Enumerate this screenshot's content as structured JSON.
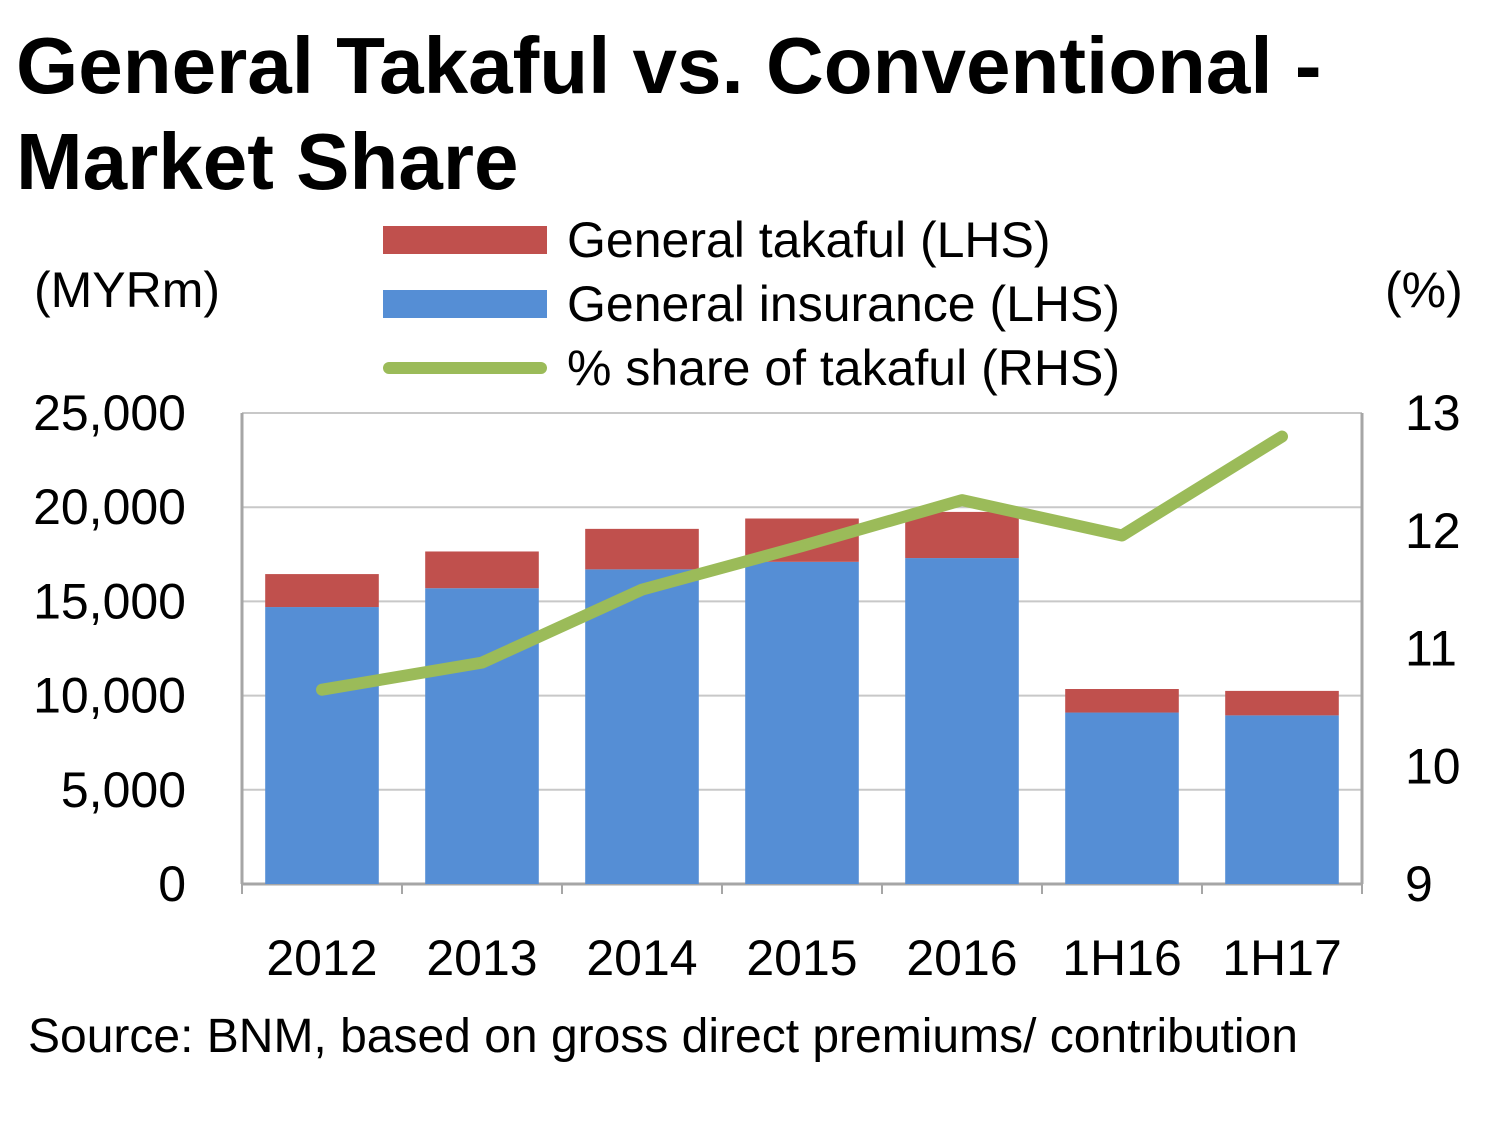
{
  "chart_data": {
    "type": "bar",
    "title": "General Takaful vs. Conventional - Market Share",
    "categories": [
      "2012",
      "2013",
      "2014",
      "2015",
      "2016",
      "1H16",
      "1H17"
    ],
    "series": [
      {
        "name": "General insurance (LHS)",
        "kind": "stacked-bar",
        "axis": "left",
        "color": "#558ed5",
        "values": [
          14700,
          15700,
          16700,
          17100,
          17300,
          9100,
          8950
        ]
      },
      {
        "name": "General takaful (LHS)",
        "kind": "stacked-bar",
        "axis": "left",
        "color": "#c0504d",
        "values": [
          1750,
          1950,
          2150,
          2300,
          2450,
          1250,
          1300
        ]
      },
      {
        "name": "% share of takaful (RHS)",
        "kind": "line",
        "axis": "right",
        "color": "#9bbb59",
        "values": [
          10.65,
          10.88,
          11.5,
          11.87,
          12.26,
          11.96,
          12.8
        ]
      }
    ],
    "legend_order": [
      "General takaful (LHS)",
      "General insurance (LHS)",
      "% share of takaful (RHS)"
    ],
    "ylabel": "(MYRm)",
    "ylabel_right": "(%)",
    "ylim": [
      0,
      25000
    ],
    "yticks": [
      0,
      5000,
      10000,
      15000,
      20000,
      25000
    ],
    "ytick_labels": [
      "0",
      "5,000",
      "10,000",
      "15,000",
      "20,000",
      "25,000"
    ],
    "ylim_right": [
      9,
      13
    ],
    "yticks_right": [
      9,
      10,
      11,
      12,
      13
    ],
    "ytick_labels_right": [
      "9",
      "10",
      "11",
      "12",
      "13"
    ],
    "grid": true,
    "legend_position": "top-center",
    "source": "Source: BNM, based on gross direct premiums/ contribution"
  }
}
